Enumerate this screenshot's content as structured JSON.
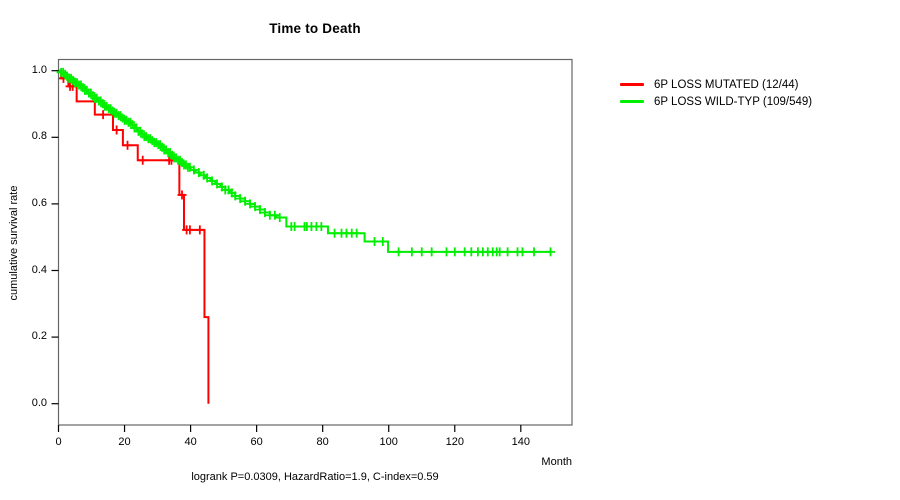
{
  "title": "Time to Death",
  "y_axis_label": "cumulative survival rate",
  "x_axis_label": "Month",
  "footer": "logrank P=0.0309, HazardRatio=1.9, C-index=0.59",
  "colors": {
    "mutated": "#ff0000",
    "wildtype": "#00ee00",
    "box_border": "#666666",
    "axis_text": "#000000"
  },
  "legend": {
    "items": [
      {
        "label": "6P LOSS MUTATED (12/44)",
        "color": "#ff0000"
      },
      {
        "label": "6P LOSS WILD-TYP (109/549)",
        "color": "#00ee00"
      }
    ]
  },
  "chart_data": {
    "type": "line",
    "subtype": "kaplan-meier-step",
    "title": "Time to Death",
    "xlabel": "Month",
    "ylabel": "cumulative survival rate",
    "xlim": [
      0,
      155.5
    ],
    "ylim": [
      0,
      1
    ],
    "grid": false,
    "legend_position": "right-outside",
    "annotation": "logrank P=0.0309, HazardRatio=1.9, C-index=0.59",
    "x_ticks": [
      0,
      20,
      40,
      60,
      80,
      100,
      120,
      140
    ],
    "y_ticks": [
      {
        "label": "1.0",
        "value": 1.0
      },
      {
        "label": "0.8",
        "value": 0.8
      },
      {
        "label": "0.6",
        "value": 0.6
      },
      {
        "label": "0.4",
        "value": 0.4
      },
      {
        "label": "0.2",
        "value": 0.2
      },
      {
        "label": "0.0",
        "value": 0.0
      }
    ],
    "series": [
      {
        "name": "6P LOSS MUTATED (12/44)",
        "color": "#ff0000",
        "n_total": 44,
        "n_events": 12,
        "end_time": 45.4,
        "steps": [
          [
            0,
            1.0
          ],
          [
            0.8,
            0.977
          ],
          [
            3,
            0.953
          ],
          [
            5.5,
            0.908
          ],
          [
            11,
            0.868
          ],
          [
            16.5,
            0.822
          ],
          [
            19.5,
            0.776
          ],
          [
            24,
            0.731
          ],
          [
            36.6,
            0.627
          ],
          [
            38,
            0.522
          ],
          [
            44.2,
            0.26
          ],
          [
            45.4,
            0.0
          ]
        ],
        "censor_times": [
          1.5,
          3.5,
          4.3,
          13.5,
          17.6,
          20.9,
          25.5,
          33.5,
          34.2,
          37.4,
          38.8,
          39.8,
          42.8
        ]
      },
      {
        "name": "6P LOSS WILD-TYP (109/549)",
        "color": "#00ee00",
        "n_total": 549,
        "n_events": 109,
        "end_time": 149,
        "steps": [
          [
            0,
            1.0
          ],
          [
            0.7,
            0.995
          ],
          [
            1.5,
            0.989
          ],
          [
            2.3,
            0.983
          ],
          [
            3.1,
            0.977
          ],
          [
            4,
            0.971
          ],
          [
            5,
            0.964
          ],
          [
            6,
            0.957
          ],
          [
            7,
            0.949
          ],
          [
            8,
            0.941
          ],
          [
            9,
            0.933
          ],
          [
            10,
            0.925
          ],
          [
            11,
            0.917
          ],
          [
            12,
            0.909
          ],
          [
            13,
            0.901
          ],
          [
            14,
            0.893
          ],
          [
            15,
            0.886
          ],
          [
            16,
            0.879
          ],
          [
            17,
            0.872
          ],
          [
            18,
            0.865
          ],
          [
            19,
            0.858
          ],
          [
            20,
            0.851
          ],
          [
            21,
            0.845
          ],
          [
            22,
            0.838
          ],
          [
            23,
            0.828
          ],
          [
            24,
            0.818
          ],
          [
            25,
            0.81
          ],
          [
            26,
            0.802
          ],
          [
            27,
            0.796
          ],
          [
            28,
            0.79
          ],
          [
            29,
            0.784
          ],
          [
            30,
            0.778
          ],
          [
            31,
            0.77
          ],
          [
            32,
            0.762
          ],
          [
            33,
            0.754
          ],
          [
            34,
            0.746
          ],
          [
            35,
            0.738
          ],
          [
            36,
            0.731
          ],
          [
            37,
            0.724
          ],
          [
            38,
            0.717
          ],
          [
            39,
            0.71
          ],
          [
            40,
            0.702
          ],
          [
            41.5,
            0.694
          ],
          [
            43,
            0.686
          ],
          [
            44.5,
            0.678
          ],
          [
            46,
            0.669
          ],
          [
            47.5,
            0.66
          ],
          [
            49,
            0.651
          ],
          [
            50.5,
            0.642
          ],
          [
            52,
            0.633
          ],
          [
            53.5,
            0.624
          ],
          [
            55,
            0.616
          ],
          [
            56.5,
            0.608
          ],
          [
            58,
            0.6
          ],
          [
            59.5,
            0.592
          ],
          [
            61,
            0.583
          ],
          [
            62.5,
            0.574
          ],
          [
            64,
            0.566
          ],
          [
            66,
            0.559
          ],
          [
            69,
            0.532
          ],
          [
            81.6,
            0.512
          ],
          [
            92.7,
            0.487
          ],
          [
            99.8,
            0.456
          ]
        ],
        "censor_times": [
          0.8,
          1.4,
          2,
          2.6,
          3.2,
          3.8,
          4.4,
          5,
          5.6,
          6.2,
          6.8,
          7.4,
          8,
          8.6,
          9.2,
          9.8,
          10.4,
          11,
          11.6,
          12.2,
          12.8,
          13.4,
          14,
          14.6,
          15.2,
          15.8,
          16.4,
          17,
          17.6,
          18.2,
          18.8,
          19.4,
          20,
          20.6,
          21.2,
          21.8,
          22.4,
          23,
          23.6,
          24.2,
          24.8,
          25.4,
          26,
          26.6,
          27.2,
          27.8,
          28.4,
          29,
          29.6,
          30.2,
          30.8,
          31.4,
          32,
          32.6,
          33.2,
          33.8,
          34.4,
          35,
          35.6,
          36.2,
          36.8,
          37.4,
          38,
          38.6,
          39.2,
          39.8,
          41,
          42.5,
          44,
          45,
          46.5,
          48,
          49.5,
          50.5,
          51.5,
          52.5,
          53.5,
          55,
          56.5,
          58,
          59.5,
          61,
          62.5,
          64,
          65.5,
          67,
          70.5,
          71.5,
          74.5,
          75.2,
          76.6,
          78.1,
          79.6,
          83.6,
          85.7,
          87.2,
          88.8,
          90.3,
          95.7,
          98.2,
          103,
          107,
          110,
          113,
          117.5,
          120,
          123,
          125,
          127,
          128.5,
          130,
          131.5,
          132.7,
          133.6,
          136,
          139,
          140.5,
          144,
          149
        ]
      }
    ]
  }
}
